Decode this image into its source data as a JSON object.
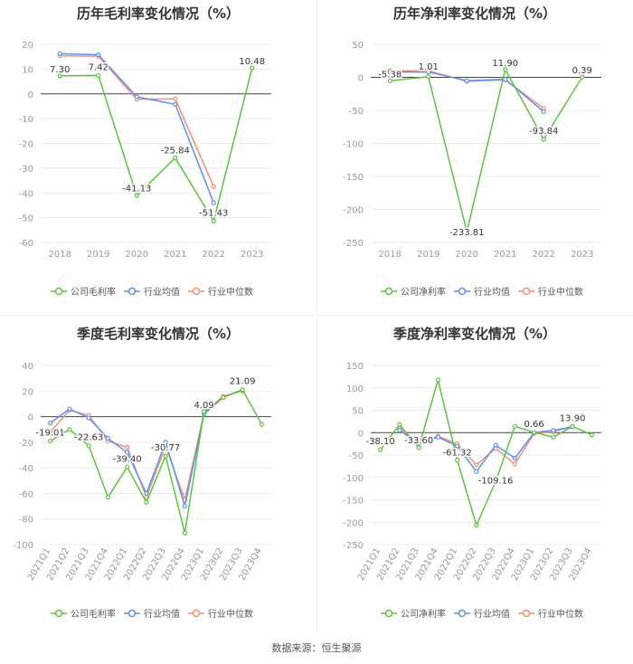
{
  "footer": "数据来源：恒生聚源",
  "colors": {
    "company": "#5ac53c",
    "avg": "#5b8ff9",
    "median": "#f6906c",
    "axis": "#999999",
    "grid": "#e6e6e6",
    "zero": "#444444"
  },
  "chart_data": [
    {
      "id": "annual-gross",
      "type": "line",
      "title": "历年毛利率变化情况（%）",
      "categories": [
        "2018",
        "2019",
        "2020",
        "2021",
        "2022",
        "2023"
      ],
      "ylim": [
        -60,
        20
      ],
      "yticks": [
        20,
        10,
        0,
        -10,
        -20,
        -30,
        -40,
        -50,
        -60
      ],
      "series": [
        {
          "name": "公司毛利率",
          "key": "company",
          "values": [
            7.3,
            7.42,
            -41.13,
            -25.84,
            -51.43,
            10.48
          ]
        },
        {
          "name": "行业均值",
          "key": "avg",
          "values": [
            16.2,
            15.8,
            -1.2,
            -4.2,
            -44.0,
            null
          ]
        },
        {
          "name": "行业中位数",
          "key": "median",
          "values": [
            15.4,
            15.2,
            -2.2,
            -2.0,
            -37.5,
            null
          ]
        }
      ],
      "labels": [
        {
          "i": 0,
          "text": "7.30"
        },
        {
          "i": 1,
          "text": "7.42"
        },
        {
          "i": 2,
          "text": "-41.13"
        },
        {
          "i": 3,
          "text": "-25.84"
        },
        {
          "i": 4,
          "text": "-51.43"
        },
        {
          "i": 5,
          "text": "10.48"
        }
      ],
      "legend": [
        "公司毛利率",
        "行业均值",
        "行业中位数"
      ]
    },
    {
      "id": "annual-net",
      "type": "line",
      "title": "历年净利率变化情况（%）",
      "categories": [
        "2018",
        "2019",
        "2020",
        "2021",
        "2022",
        "2023"
      ],
      "ylim": [
        -250,
        50
      ],
      "yticks": [
        50,
        0,
        -50,
        -100,
        -150,
        -200,
        -250
      ],
      "series": [
        {
          "name": "公司净利率",
          "key": "company",
          "values": [
            -5.38,
            1.01,
            -233.81,
            11.9,
            -93.84,
            0.39
          ]
        },
        {
          "name": "行业均值",
          "key": "avg",
          "values": [
            8.0,
            8.0,
            -5.0,
            -3.0,
            -52.0,
            null
          ]
        },
        {
          "name": "行业中位数",
          "key": "median",
          "values": [
            10.0,
            10.0,
            -6.0,
            -4.0,
            -47.0,
            null
          ]
        }
      ],
      "labels": [
        {
          "i": 0,
          "text": "-5.38"
        },
        {
          "i": 1,
          "text": "1.01"
        },
        {
          "i": 2,
          "text": "-233.81"
        },
        {
          "i": 3,
          "text": "11.90"
        },
        {
          "i": 4,
          "text": "-93.84"
        },
        {
          "i": 5,
          "text": "0.39"
        }
      ],
      "legend": [
        "公司净利率",
        "行业均值",
        "行业中位数"
      ]
    },
    {
      "id": "quarter-gross",
      "type": "line",
      "title": "季度毛利率变化情况（%）",
      "categories": [
        "2021Q1",
        "2021Q2",
        "2021Q3",
        "2021Q4",
        "2022Q1",
        "2022Q2",
        "2022Q3",
        "2022Q4",
        "2023Q1",
        "2023Q2",
        "2023Q3",
        "2023Q4"
      ],
      "ylim": [
        -100,
        40
      ],
      "yticks": [
        40,
        20,
        0,
        -20,
        -40,
        -60,
        -80,
        -100
      ],
      "series": [
        {
          "name": "公司毛利率",
          "key": "company",
          "values": [
            -19.01,
            -10.0,
            -22.63,
            -63.0,
            -39.4,
            -67.0,
            -30.77,
            -91.0,
            4.09,
            15.0,
            21.09,
            -6.0
          ]
        },
        {
          "name": "行业均值",
          "key": "avg",
          "values": [
            -5.0,
            6.0,
            -1.0,
            -17.0,
            -28.0,
            -60.0,
            -20.0,
            -70.0,
            2.0,
            15.0,
            21.0,
            null
          ]
        },
        {
          "name": "行业中位数",
          "key": "median",
          "values": [
            -12.0,
            5.0,
            1.0,
            -19.0,
            -24.0,
            -63.0,
            -23.0,
            -65.0,
            3.0,
            16.0,
            20.0,
            null
          ]
        }
      ],
      "labels": [
        {
          "i": 0,
          "text": "-19.01"
        },
        {
          "i": 2,
          "text": "-22.63"
        },
        {
          "i": 4,
          "text": "-39.40"
        },
        {
          "i": 6,
          "text": "-30.77"
        },
        {
          "i": 8,
          "text": "4.09"
        },
        {
          "i": 10,
          "text": "21.09"
        }
      ],
      "legend": [
        "公司毛利率",
        "行业均值",
        "行业中位数"
      ]
    },
    {
      "id": "quarter-net",
      "type": "line",
      "title": "季度净利率变化情况（%）",
      "categories": [
        "2021Q1",
        "2021Q2",
        "2021Q3",
        "2021Q4",
        "2022Q1",
        "2022Q2",
        "2022Q3",
        "2022Q4",
        "2023Q1",
        "2023Q2",
        "2023Q3",
        "2023Q4"
      ],
      "ylim": [
        -250,
        150
      ],
      "yticks": [
        150,
        100,
        50,
        0,
        -50,
        -100,
        -150,
        -200,
        -250
      ],
      "series": [
        {
          "name": "公司净利率",
          "key": "company",
          "values": [
            -38.1,
            18.0,
            -33.6,
            118.0,
            -61.32,
            -207.0,
            -109.16,
            14.0,
            0.66,
            -10.0,
            13.9,
            -5.0
          ]
        },
        {
          "name": "行业均值",
          "key": "avg",
          "values": [
            null,
            5.0,
            -25.0,
            -10.0,
            -30.0,
            -87.0,
            -28.0,
            -57.0,
            0.0,
            5.0,
            13.0,
            null
          ]
        },
        {
          "name": "行业中位数",
          "key": "median",
          "values": [
            null,
            9.0,
            -22.0,
            -8.0,
            -25.0,
            -72.0,
            -35.0,
            -70.0,
            -2.0,
            2.0,
            14.0,
            null
          ]
        }
      ],
      "labels": [
        {
          "i": 0,
          "text": "-38.10"
        },
        {
          "i": 2,
          "text": "-33.60"
        },
        {
          "i": 4,
          "text": "-61.32"
        },
        {
          "i": 6,
          "text": "-109.16"
        },
        {
          "i": 8,
          "text": "0.66"
        },
        {
          "i": 10,
          "text": "13.90"
        }
      ],
      "legend": [
        "公司净利率",
        "行业均值",
        "行业中位数"
      ]
    }
  ]
}
